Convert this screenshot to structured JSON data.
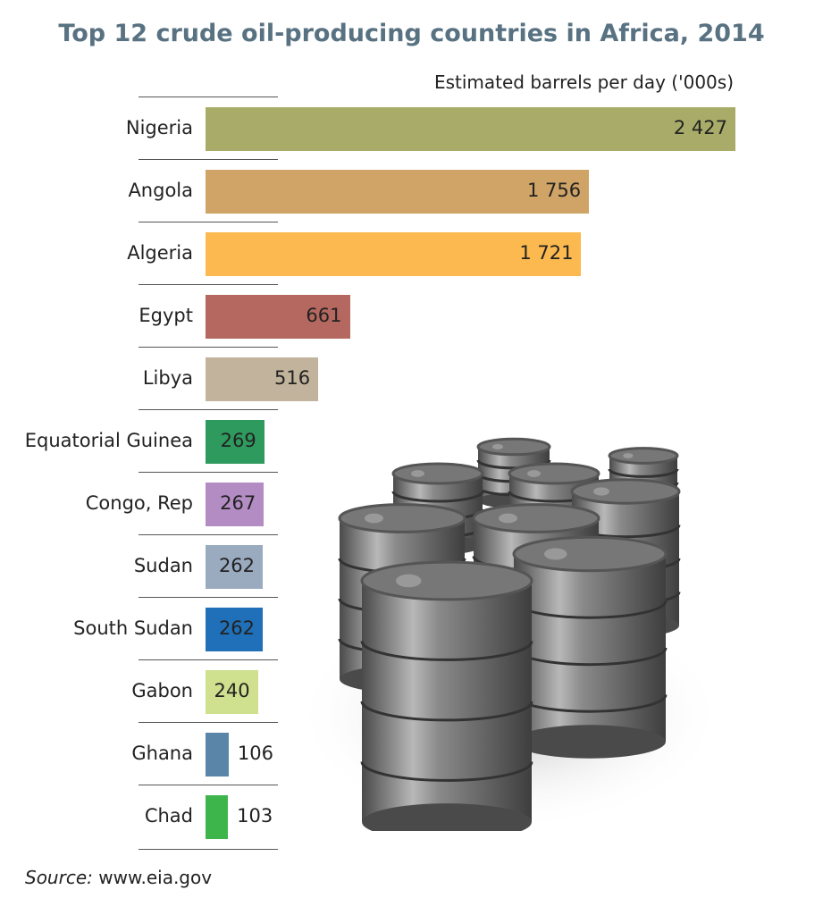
{
  "chart_data": {
    "type": "bar",
    "orientation": "horizontal",
    "title": "Top 12 crude oil-producing countries in Africa, 2014",
    "xlabel": "Estimated barrels per day ('000s)",
    "ylabel": "",
    "xlim": [
      0,
      2427
    ],
    "categories": [
      "Nigeria",
      "Angola",
      "Algeria",
      "Egypt",
      "Libya",
      "Equatorial Guinea",
      "Congo, Rep",
      "Sudan",
      "South Sudan",
      "Gabon",
      "Ghana",
      "Chad"
    ],
    "values": [
      2427,
      1756,
      1721,
      661,
      516,
      269,
      267,
      262,
      262,
      240,
      106,
      103
    ],
    "value_labels": [
      "2 427",
      "1 756",
      "1 721",
      "661",
      "516",
      "269",
      "267",
      "262",
      "262",
      "240",
      "106",
      "103"
    ],
    "colors": [
      "#a9ac68",
      "#cfa466",
      "#fbb94f",
      "#b5685f",
      "#c2b49c",
      "#2f9a5e",
      "#b48cc4",
      "#9aabc0",
      "#1f70b8",
      "#cfe08e",
      "#5a84a8",
      "#3db54a"
    ],
    "grid": false,
    "legend": "none"
  },
  "source_label": "Source:",
  "source_value": " www.eia.gov"
}
